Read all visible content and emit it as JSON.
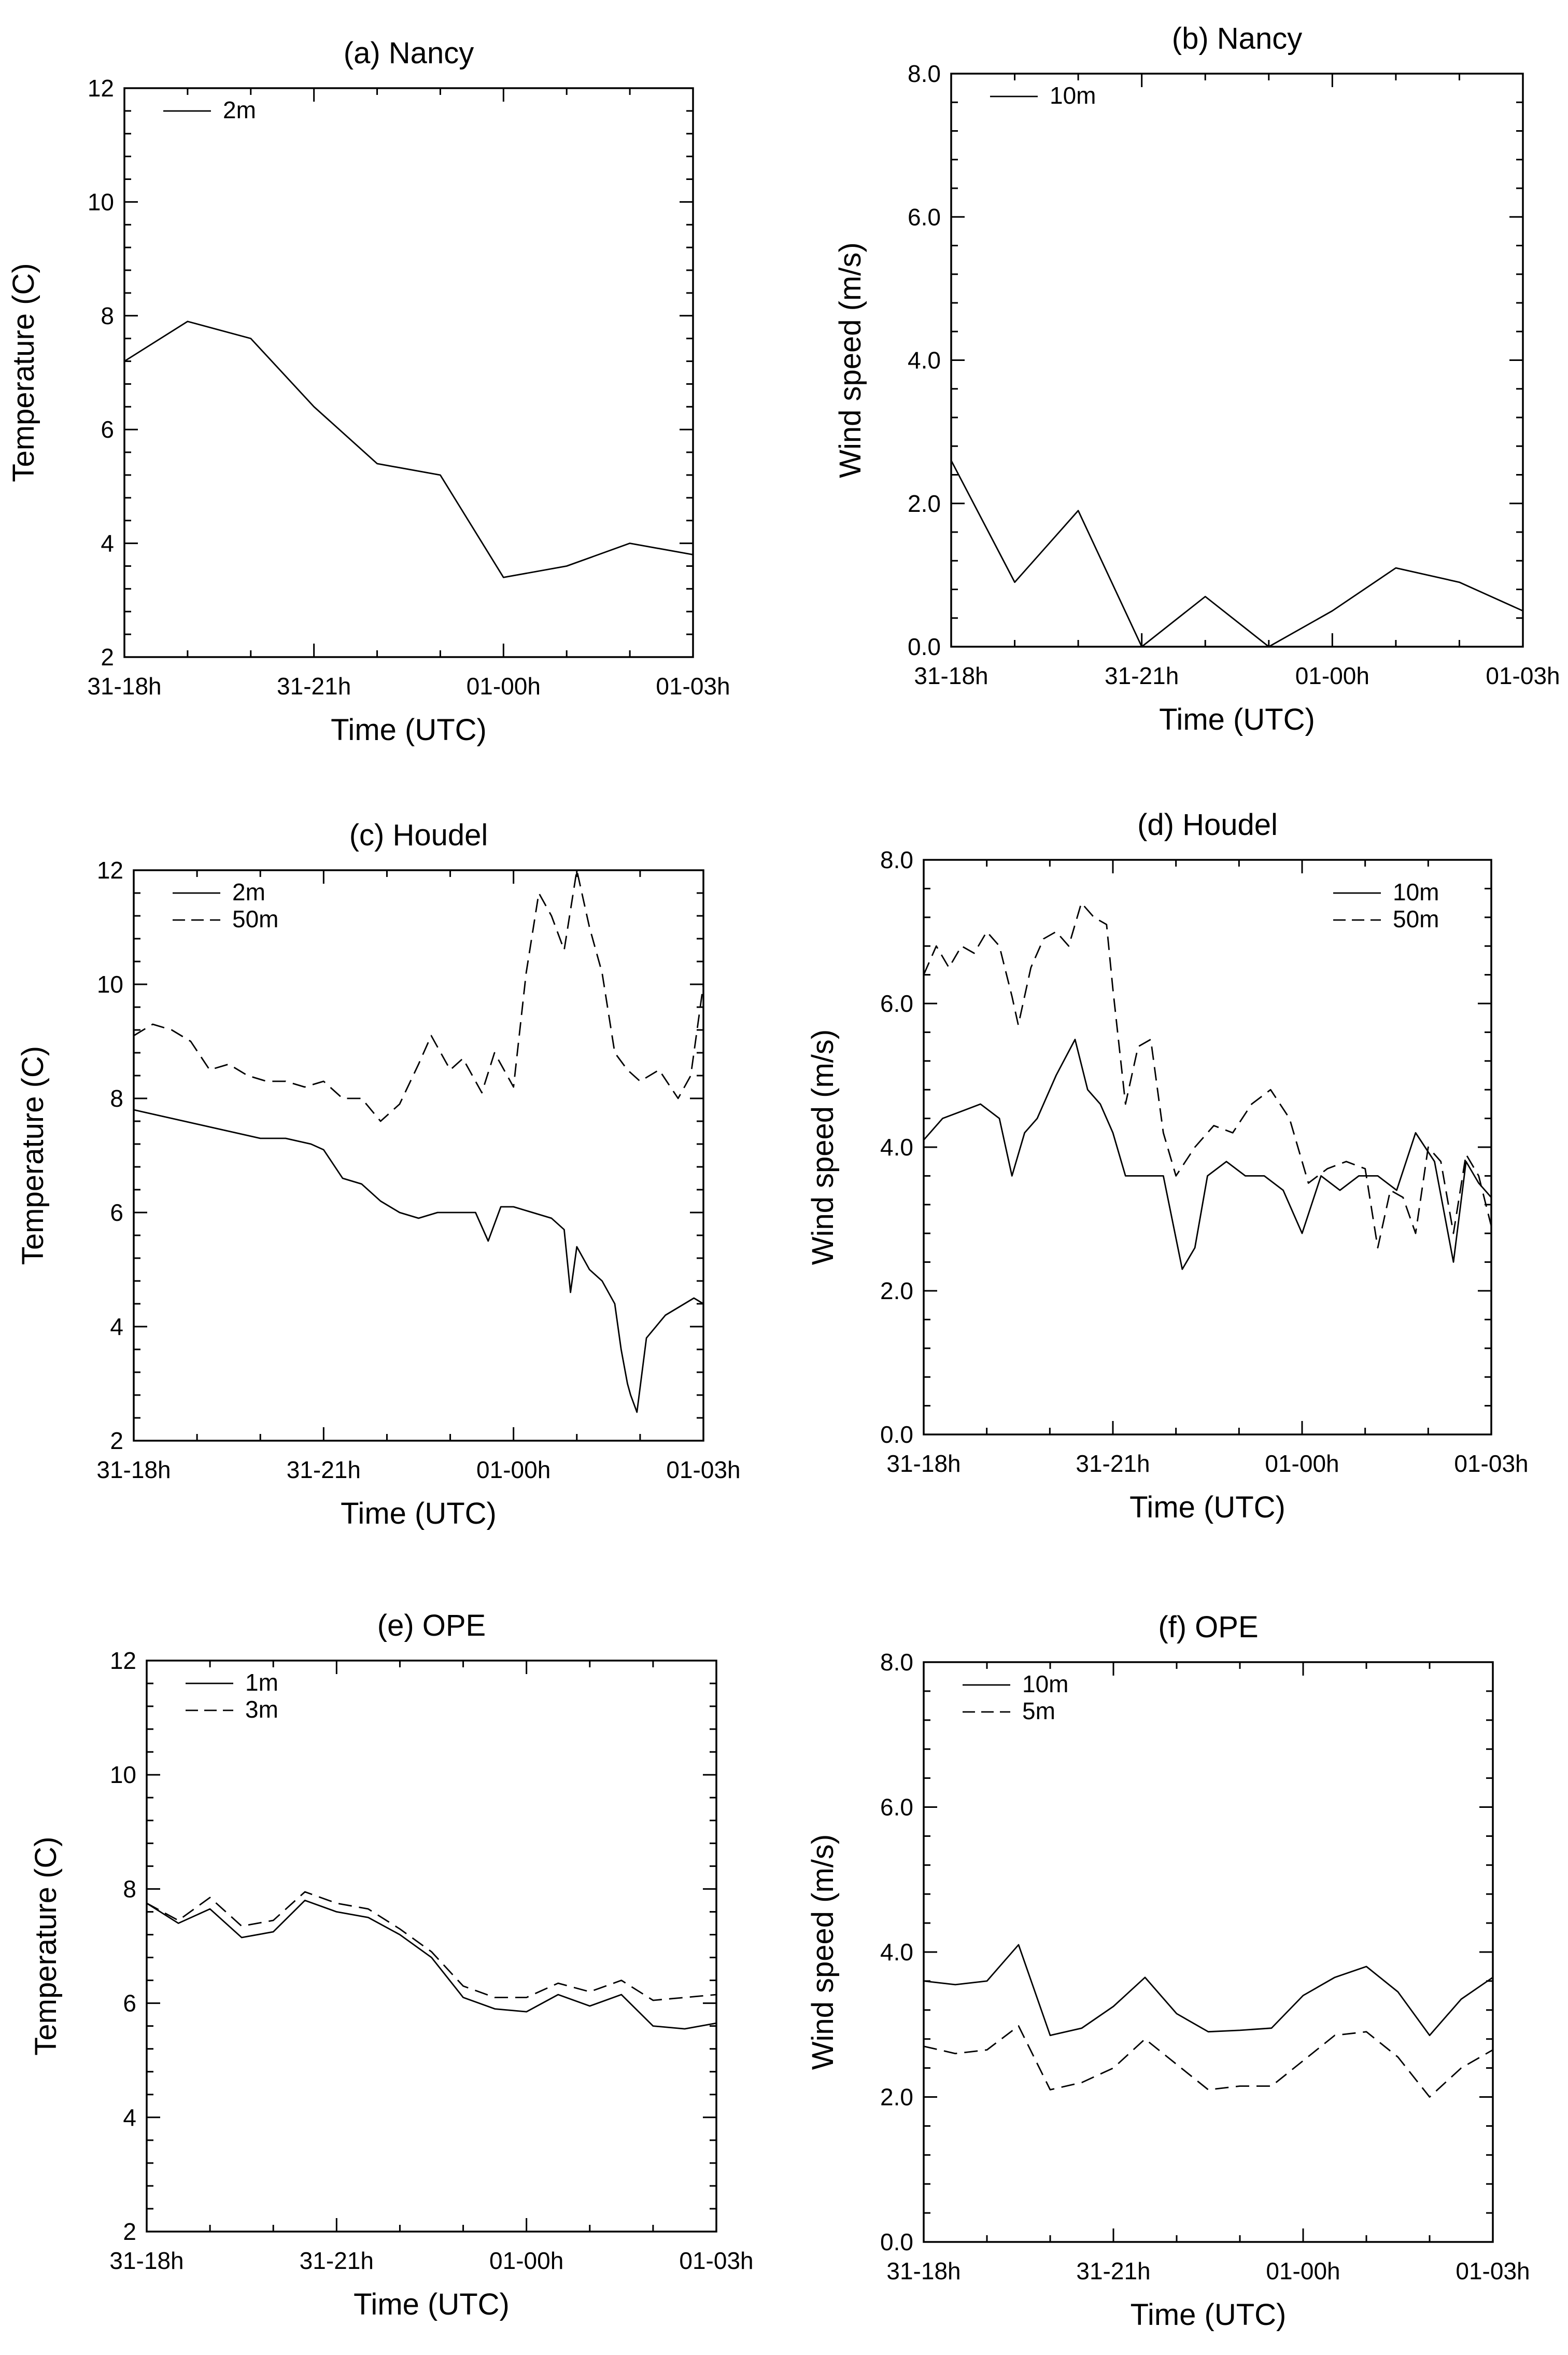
{
  "chart_data": [
    {
      "id": "a",
      "type": "line",
      "title": "(a) Nancy",
      "xlabel": "Time (UTC)",
      "ylabel": "Temperature (C)",
      "xlim": [
        0,
        9
      ],
      "ylim": [
        2,
        12
      ],
      "x_ticks": [
        {
          "x": 0,
          "label": "31-18h"
        },
        {
          "x": 3,
          "label": "31-21h"
        },
        {
          "x": 6,
          "label": "01-00h"
        },
        {
          "x": 9,
          "label": "01-03h"
        }
      ],
      "y_ticks": [
        {
          "y": 2,
          "label": "2"
        },
        {
          "y": 4,
          "label": "4"
        },
        {
          "y": 6,
          "label": "6"
        },
        {
          "y": 8,
          "label": "8"
        },
        {
          "y": 10,
          "label": "10"
        },
        {
          "y": 12,
          "label": "12"
        }
      ],
      "legend": "top-left",
      "grid": false,
      "series": [
        {
          "name": "2m",
          "dash": "solid",
          "x": [
            0,
            1,
            2,
            3,
            4,
            5,
            6,
            7,
            8,
            9
          ],
          "values": [
            7.2,
            7.9,
            7.6,
            6.4,
            5.4,
            5.2,
            3.4,
            3.6,
            4.0,
            3.8
          ]
        }
      ]
    },
    {
      "id": "b",
      "type": "line",
      "title": "(b) Nancy",
      "xlabel": "Time (UTC)",
      "ylabel": "Wind speed (m/s)",
      "xlim": [
        0,
        9
      ],
      "ylim": [
        0,
        8
      ],
      "x_ticks": [
        {
          "x": 0,
          "label": "31-18h"
        },
        {
          "x": 3,
          "label": "31-21h"
        },
        {
          "x": 6,
          "label": "01-00h"
        },
        {
          "x": 9,
          "label": "01-03h"
        }
      ],
      "y_ticks": [
        {
          "y": 0,
          "label": "0.0"
        },
        {
          "y": 2,
          "label": "2.0"
        },
        {
          "y": 4,
          "label": "4.0"
        },
        {
          "y": 6,
          "label": "6.0"
        },
        {
          "y": 8,
          "label": "8.0"
        }
      ],
      "legend": "top-left",
      "grid": false,
      "series": [
        {
          "name": "10m",
          "dash": "solid",
          "x": [
            0,
            1,
            2,
            3,
            4,
            5,
            6,
            7,
            8,
            9
          ],
          "values": [
            2.6,
            0.9,
            1.9,
            0.0,
            0.7,
            0.0,
            0.5,
            1.1,
            0.9,
            0.5
          ]
        }
      ]
    },
    {
      "id": "c",
      "type": "line",
      "title": "(c) Houdel",
      "xlabel": "Time (UTC)",
      "ylabel": "Temperature (C)",
      "xlim": [
        0,
        9
      ],
      "ylim": [
        2,
        12
      ],
      "x_ticks": [
        {
          "x": 0,
          "label": "31-18h"
        },
        {
          "x": 3,
          "label": "31-21h"
        },
        {
          "x": 6,
          "label": "01-00h"
        },
        {
          "x": 9,
          "label": "01-03h"
        }
      ],
      "y_ticks": [
        {
          "y": 2,
          "label": "2"
        },
        {
          "y": 4,
          "label": "4"
        },
        {
          "y": 6,
          "label": "6"
        },
        {
          "y": 8,
          "label": "8"
        },
        {
          "y": 10,
          "label": "10"
        },
        {
          "y": 12,
          "label": "12"
        }
      ],
      "legend": "top-left",
      "grid": false,
      "series": [
        {
          "name": "2m",
          "dash": "solid",
          "x": [
            0,
            0.4,
            0.8,
            1.2,
            1.6,
            2.0,
            2.4,
            2.8,
            3.0,
            3.3,
            3.6,
            3.9,
            4.2,
            4.5,
            4.8,
            5.1,
            5.4,
            5.6,
            5.8,
            6.0,
            6.3,
            6.6,
            6.8,
            6.9,
            7.0,
            7.2,
            7.4,
            7.6,
            7.7,
            7.8,
            7.85,
            7.95,
            8.1,
            8.4,
            8.7,
            8.85,
            9.0
          ],
          "values": [
            7.8,
            7.7,
            7.6,
            7.5,
            7.4,
            7.3,
            7.3,
            7.2,
            7.1,
            6.6,
            6.5,
            6.2,
            6.0,
            5.9,
            6.0,
            6.0,
            6.0,
            5.5,
            6.1,
            6.1,
            6.0,
            5.9,
            5.7,
            4.6,
            5.4,
            5.0,
            4.8,
            4.4,
            3.6,
            3.0,
            2.8,
            2.5,
            3.8,
            4.2,
            4.4,
            4.5,
            4.4
          ]
        },
        {
          "name": "50m",
          "dash": "dashed",
          "x": [
            0,
            0.3,
            0.6,
            0.9,
            1.2,
            1.5,
            1.8,
            2.1,
            2.4,
            2.7,
            3.0,
            3.3,
            3.6,
            3.9,
            4.2,
            4.5,
            4.7,
            5.0,
            5.2,
            5.5,
            5.7,
            6.0,
            6.2,
            6.4,
            6.6,
            6.8,
            7.0,
            7.2,
            7.4,
            7.6,
            7.8,
            8.0,
            8.3,
            8.6,
            8.8,
            9.0
          ],
          "values": [
            9.1,
            9.3,
            9.2,
            9.0,
            8.5,
            8.6,
            8.4,
            8.3,
            8.3,
            8.2,
            8.3,
            8.0,
            8.0,
            7.6,
            7.9,
            8.6,
            9.1,
            8.5,
            8.7,
            8.1,
            8.8,
            8.2,
            10.2,
            11.6,
            11.2,
            10.6,
            12.0,
            11.0,
            10.2,
            8.8,
            8.5,
            8.3,
            8.5,
            8.0,
            8.4,
            10.0
          ]
        }
      ]
    },
    {
      "id": "d",
      "type": "line",
      "title": "(d) Houdel",
      "xlabel": "Time (UTC)",
      "ylabel": "Wind speed (m/s)",
      "xlim": [
        0,
        9
      ],
      "ylim": [
        0,
        8
      ],
      "x_ticks": [
        {
          "x": 0,
          "label": "31-18h"
        },
        {
          "x": 3,
          "label": "31-21h"
        },
        {
          "x": 6,
          "label": "01-00h"
        },
        {
          "x": 9,
          "label": "01-03h"
        }
      ],
      "y_ticks": [
        {
          "y": 0,
          "label": "0.0"
        },
        {
          "y": 2,
          "label": "2.0"
        },
        {
          "y": 4,
          "label": "4.0"
        },
        {
          "y": 6,
          "label": "6.0"
        },
        {
          "y": 8,
          "label": "8.0"
        }
      ],
      "legend": "top-right",
      "grid": false,
      "series": [
        {
          "name": "10m",
          "dash": "solid",
          "x": [
            0,
            0.3,
            0.6,
            0.9,
            1.2,
            1.4,
            1.6,
            1.8,
            2.1,
            2.4,
            2.6,
            2.8,
            3.0,
            3.2,
            3.5,
            3.8,
            4.1,
            4.3,
            4.5,
            4.8,
            5.1,
            5.4,
            5.7,
            6.0,
            6.3,
            6.6,
            6.9,
            7.2,
            7.5,
            7.8,
            8.1,
            8.4,
            8.6,
            8.8,
            9.0
          ],
          "values": [
            4.1,
            4.4,
            4.5,
            4.6,
            4.4,
            3.6,
            4.2,
            4.4,
            5.0,
            5.5,
            4.8,
            4.6,
            4.2,
            3.6,
            3.6,
            3.6,
            2.3,
            2.6,
            3.6,
            3.8,
            3.6,
            3.6,
            3.4,
            2.8,
            3.6,
            3.4,
            3.6,
            3.6,
            3.4,
            4.2,
            3.8,
            2.4,
            3.8,
            3.5,
            3.3
          ]
        },
        {
          "name": "50m",
          "dash": "dashed",
          "x": [
            0,
            0.2,
            0.4,
            0.6,
            0.8,
            1.0,
            1.2,
            1.4,
            1.5,
            1.7,
            1.9,
            2.1,
            2.3,
            2.5,
            2.7,
            2.9,
            3.0,
            3.2,
            3.4,
            3.6,
            3.8,
            4.0,
            4.3,
            4.6,
            4.9,
            5.2,
            5.5,
            5.8,
            6.1,
            6.4,
            6.7,
            7.0,
            7.2,
            7.4,
            7.6,
            7.8,
            8.0,
            8.2,
            8.4,
            8.6,
            8.8,
            9.0
          ],
          "values": [
            6.4,
            6.8,
            6.5,
            6.8,
            6.7,
            7.0,
            6.8,
            6.1,
            5.7,
            6.5,
            6.9,
            7.0,
            6.8,
            7.4,
            7.2,
            7.1,
            6.2,
            4.6,
            5.4,
            5.5,
            4.2,
            3.6,
            4.0,
            4.3,
            4.2,
            4.6,
            4.8,
            4.4,
            3.5,
            3.7,
            3.8,
            3.7,
            2.6,
            3.4,
            3.3,
            2.8,
            4.0,
            3.8,
            2.8,
            3.9,
            3.6,
            2.9
          ]
        }
      ]
    },
    {
      "id": "e",
      "type": "line",
      "title": "(e) OPE",
      "xlabel": "Time (UTC)",
      "ylabel": "Temperature (C)",
      "xlim": [
        0,
        9
      ],
      "ylim": [
        2,
        12
      ],
      "x_ticks": [
        {
          "x": 0,
          "label": "31-18h"
        },
        {
          "x": 3,
          "label": "31-21h"
        },
        {
          "x": 6,
          "label": "01-00h"
        },
        {
          "x": 9,
          "label": "01-03h"
        }
      ],
      "y_ticks": [
        {
          "y": 2,
          "label": "2"
        },
        {
          "y": 4,
          "label": "4"
        },
        {
          "y": 6,
          "label": "6"
        },
        {
          "y": 8,
          "label": "8"
        },
        {
          "y": 10,
          "label": "10"
        },
        {
          "y": 12,
          "label": "12"
        }
      ],
      "legend": "top-left",
      "grid": false,
      "series": [
        {
          "name": "1m",
          "dash": "solid",
          "x": [
            0,
            0.5,
            1.0,
            1.5,
            2.0,
            2.5,
            3.0,
            3.5,
            4.0,
            4.5,
            5.0,
            5.5,
            6.0,
            6.5,
            7.0,
            7.5,
            8.0,
            8.5,
            9.0
          ],
          "values": [
            7.75,
            7.4,
            7.65,
            7.15,
            7.25,
            7.8,
            7.6,
            7.5,
            7.2,
            6.8,
            6.1,
            5.9,
            5.85,
            6.15,
            5.95,
            6.15,
            5.6,
            5.55,
            5.65
          ]
        },
        {
          "name": "3m",
          "dash": "dashed",
          "x": [
            0,
            0.5,
            1.0,
            1.5,
            2.0,
            2.5,
            3.0,
            3.5,
            4.0,
            4.5,
            5.0,
            5.5,
            6.0,
            6.5,
            7.0,
            7.5,
            8.0,
            8.5,
            9.0
          ],
          "values": [
            7.75,
            7.45,
            7.85,
            7.35,
            7.45,
            7.95,
            7.75,
            7.65,
            7.3,
            6.9,
            6.3,
            6.1,
            6.1,
            6.35,
            6.2,
            6.4,
            6.05,
            6.1,
            6.15
          ]
        }
      ]
    },
    {
      "id": "f",
      "type": "line",
      "title": "(f) OPE",
      "xlabel": "Time (UTC)",
      "ylabel": "Wind speed (m/s)",
      "xlim": [
        0,
        9
      ],
      "ylim": [
        0,
        8
      ],
      "x_ticks": [
        {
          "x": 0,
          "label": "31-18h"
        },
        {
          "x": 3,
          "label": "31-21h"
        },
        {
          "x": 6,
          "label": "01-00h"
        },
        {
          "x": 9,
          "label": "01-03h"
        }
      ],
      "y_ticks": [
        {
          "y": 0,
          "label": "0.0"
        },
        {
          "y": 2,
          "label": "2.0"
        },
        {
          "y": 4,
          "label": "4.0"
        },
        {
          "y": 6,
          "label": "6.0"
        },
        {
          "y": 8,
          "label": "8.0"
        }
      ],
      "legend": "top-left",
      "grid": false,
      "series": [
        {
          "name": "10m",
          "dash": "solid",
          "x": [
            0,
            0.5,
            1.0,
            1.5,
            2.0,
            2.5,
            3.0,
            3.5,
            4.0,
            4.5,
            5.0,
            5.5,
            6.0,
            6.5,
            7.0,
            7.5,
            8.0,
            8.5,
            9.0
          ],
          "values": [
            3.6,
            3.55,
            3.6,
            4.1,
            2.85,
            2.95,
            3.25,
            3.65,
            3.15,
            2.9,
            2.92,
            2.95,
            3.4,
            3.65,
            3.8,
            3.45,
            2.85,
            3.35,
            3.65
          ]
        },
        {
          "name": "5m",
          "dash": "dashed",
          "x": [
            0,
            0.5,
            1.0,
            1.5,
            2.0,
            2.5,
            3.0,
            3.5,
            4.0,
            4.5,
            5.0,
            5.5,
            6.0,
            6.5,
            7.0,
            7.5,
            8.0,
            8.5,
            9.0
          ],
          "values": [
            2.7,
            2.6,
            2.65,
            2.98,
            2.1,
            2.2,
            2.4,
            2.8,
            2.45,
            2.1,
            2.15,
            2.15,
            2.5,
            2.85,
            2.9,
            2.55,
            2.0,
            2.4,
            2.65
          ]
        }
      ]
    }
  ]
}
